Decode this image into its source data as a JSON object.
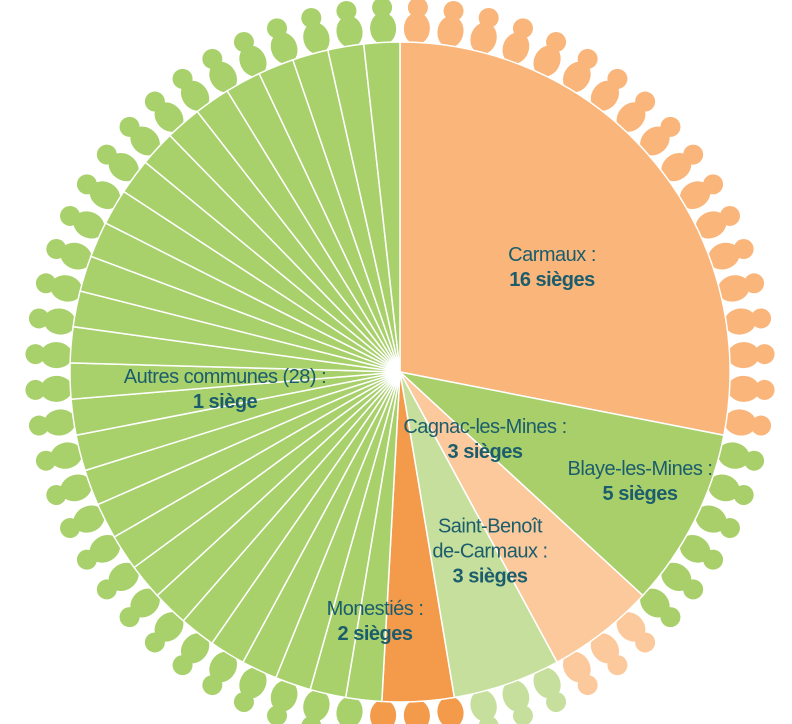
{
  "chart_data": {
    "type": "pie",
    "categories": [
      "Carmaux :",
      "Blaye-les-Mines :",
      "Saint-Benoît de-Carmaux :",
      "Cagnac-les-Mines :",
      "Monestiés :"
    ],
    "values": [
      16,
      5,
      3,
      3,
      2
    ],
    "value_labels": [
      "16 sièges",
      "5 sièges",
      "3 sièges",
      "3 sièges",
      "2 sièges"
    ],
    "colors": [
      "#f9b57a",
      "#a9cf6a",
      "#fbc99b",
      "#c6df9c",
      "#f39a4b"
    ],
    "others": {
      "label": "Autres communes (28) :",
      "value_label": "1 siège",
      "color": "#a8d06b",
      "values": [
        1,
        1,
        1,
        1,
        1,
        1,
        1,
        1,
        1,
        1,
        1,
        1,
        1,
        1,
        1,
        1,
        1,
        1,
        1,
        1,
        1,
        1,
        1,
        1,
        1,
        1,
        1,
        1
      ]
    }
  }
}
